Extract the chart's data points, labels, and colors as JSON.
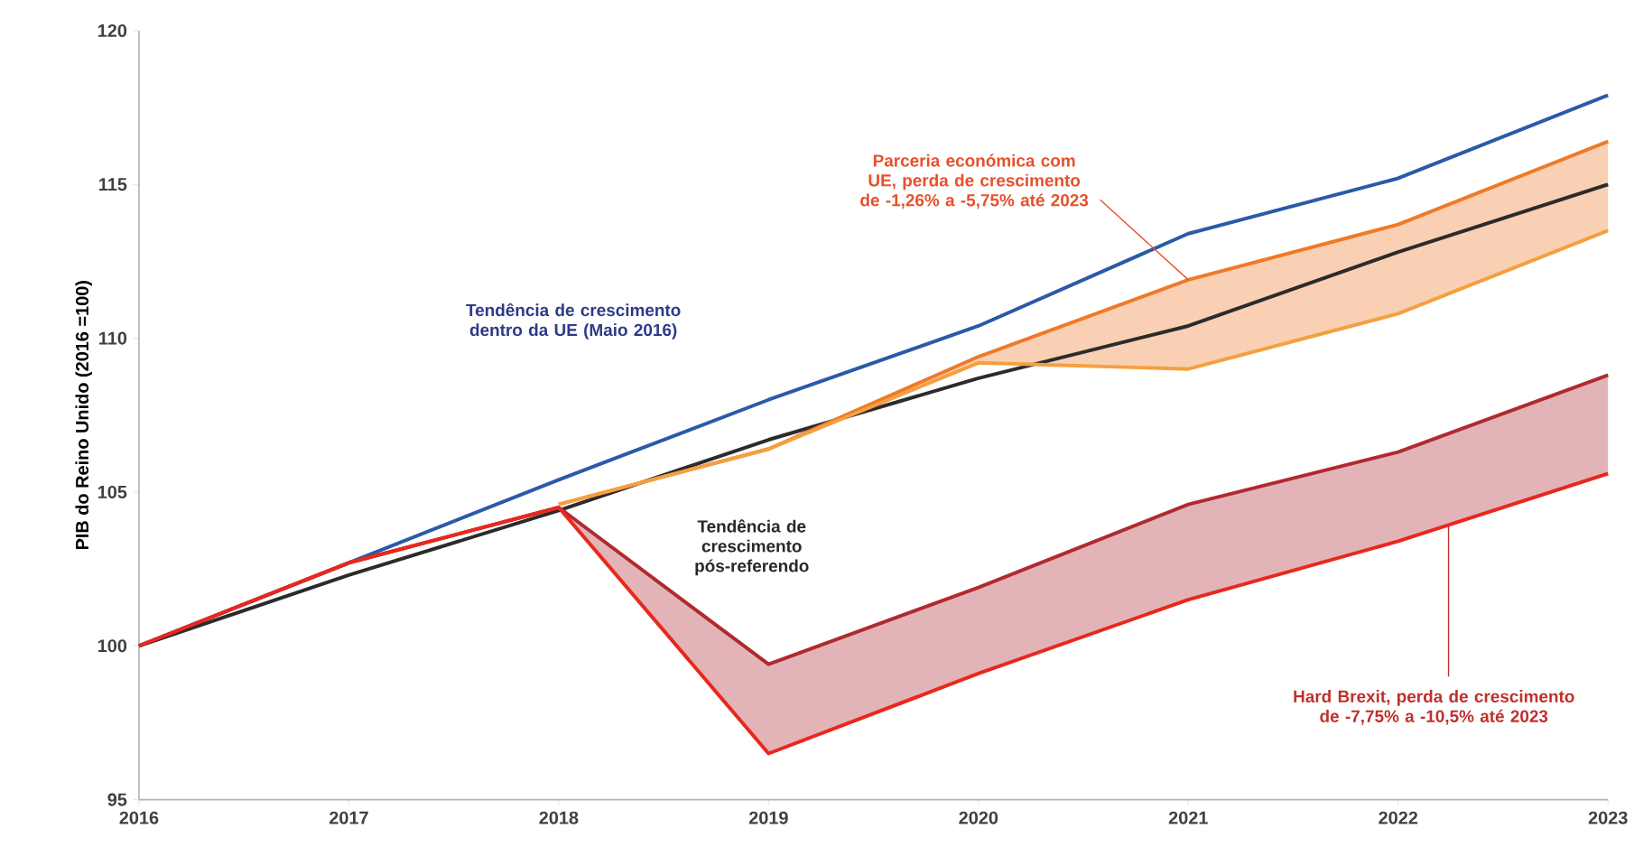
{
  "chart_data": {
    "type": "line",
    "ylabel": "PIB do Reino Unido (2016 =100)",
    "xlim": [
      2016,
      2023
    ],
    "ylim": [
      95,
      120
    ],
    "xticks": [
      2016,
      2017,
      2018,
      2019,
      2020,
      2021,
      2022,
      2023
    ],
    "yticks": [
      95,
      100,
      105,
      110,
      115,
      120
    ],
    "grid": false,
    "marker": "none",
    "line_style": "solid",
    "series": [
      {
        "color": "#2a5aa8",
        "x": [
          2016,
          2017,
          2018,
          2019,
          2020,
          2021,
          2022,
          2023
        ],
        "values": [
          100,
          102.7,
          105.4,
          108.0,
          110.4,
          113.4,
          115.2,
          117.9
        ]
      },
      {
        "color": "#2b2b2b",
        "x": [
          2016,
          2017,
          2018,
          2019,
          2020,
          2021,
          2022,
          2023
        ],
        "values": [
          100,
          102.3,
          104.4,
          106.7,
          108.7,
          110.4,
          112.8,
          115.0
        ]
      },
      {
        "color": "#ef7a28",
        "x": [
          2018,
          2019,
          2020,
          2021,
          2022,
          2023
        ],
        "values": [
          104.6,
          106.4,
          109.4,
          111.9,
          113.7,
          116.4
        ],
        "lower": [
          104.6,
          106.4,
          109.2,
          109.0,
          110.8,
          113.5
        ],
        "upper": [
          104.6,
          106.4,
          109.4,
          111.9,
          113.7,
          116.4
        ]
      },
      {
        "color": "#f4a040",
        "x": [
          2018,
          2019,
          2020,
          2021,
          2022,
          2023
        ],
        "values": [
          104.6,
          106.4,
          109.2,
          109.0,
          110.8,
          113.5
        ]
      },
      {
        "color": "#b02a30",
        "x": [
          2016,
          2017,
          2018,
          2019,
          2020,
          2021,
          2022,
          2023
        ],
        "values": [
          100,
          102.7,
          104.5,
          99.4,
          101.9,
          104.6,
          106.3,
          108.8
        ],
        "lower": [
          100,
          102.7,
          104.5,
          96.5,
          99.1,
          101.5,
          103.4,
          105.6
        ],
        "upper": [
          100,
          102.7,
          104.5,
          99.4,
          101.9,
          104.6,
          106.3,
          108.8
        ]
      },
      {
        "color": "#e8281e",
        "x": [
          2016,
          2017,
          2018,
          2019,
          2020,
          2021,
          2022,
          2023
        ],
        "values": [
          100,
          102.7,
          104.5,
          96.5,
          99.1,
          101.5,
          103.4,
          105.6
        ]
      }
    ],
    "annotations": [
      "Tendência de crescimento dentro da UE (Maio 2016)",
      "Tendência de crescimento pós-referendo",
      {
        "text": "Parceria económica com UE, perda de crescimento de -1,26% a -5,75% até 2023",
        "x": 2021,
        "y": 111.9
      },
      {
        "text": "Hard Brexit, perda de crescimento de -7,75% a -10,5% até 2023",
        "x": 2022.24,
        "y": 103.9
      }
    ]
  }
}
